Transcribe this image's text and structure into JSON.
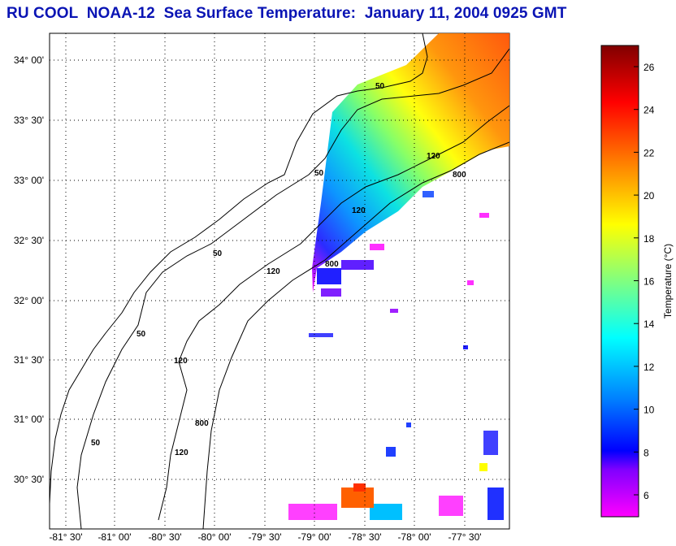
{
  "title": "RU COOL  NOAA-12  Sea Surface Temperature:  January 11, 2004 0925 GMT",
  "lat_ticks": [
    "34° 00'",
    "33° 30'",
    "33° 00'",
    "32° 30'",
    "32° 00'",
    "31° 30'",
    "31° 00'",
    "30° 30'"
  ],
  "lon_ticks": [
    "-81° 30'",
    "-81° 00'",
    "-80° 30'",
    "-80° 00'",
    "-79° 30'",
    "-79° 00'",
    "-78° 30'",
    "-78° 00'",
    "-77° 30'"
  ],
  "contour_labels": [
    "50",
    "50",
    "50",
    "50",
    "50",
    "120",
    "120",
    "120",
    "120",
    "120",
    "800",
    "800",
    "800"
  ],
  "colorbar": {
    "label": "Temperature (°C)",
    "ticks": [
      "26",
      "24",
      "22",
      "20",
      "18",
      "16",
      "14",
      "12",
      "10",
      "8",
      "6"
    ],
    "colors": [
      "#ff00ff",
      "#8000ff",
      "#0000ff",
      "#0080ff",
      "#00ffff",
      "#80ff80",
      "#ffff00",
      "#ff8000",
      "#ff0000",
      "#800000"
    ]
  },
  "land_color": "#ffffff",
  "gridline_color": "#000000"
}
